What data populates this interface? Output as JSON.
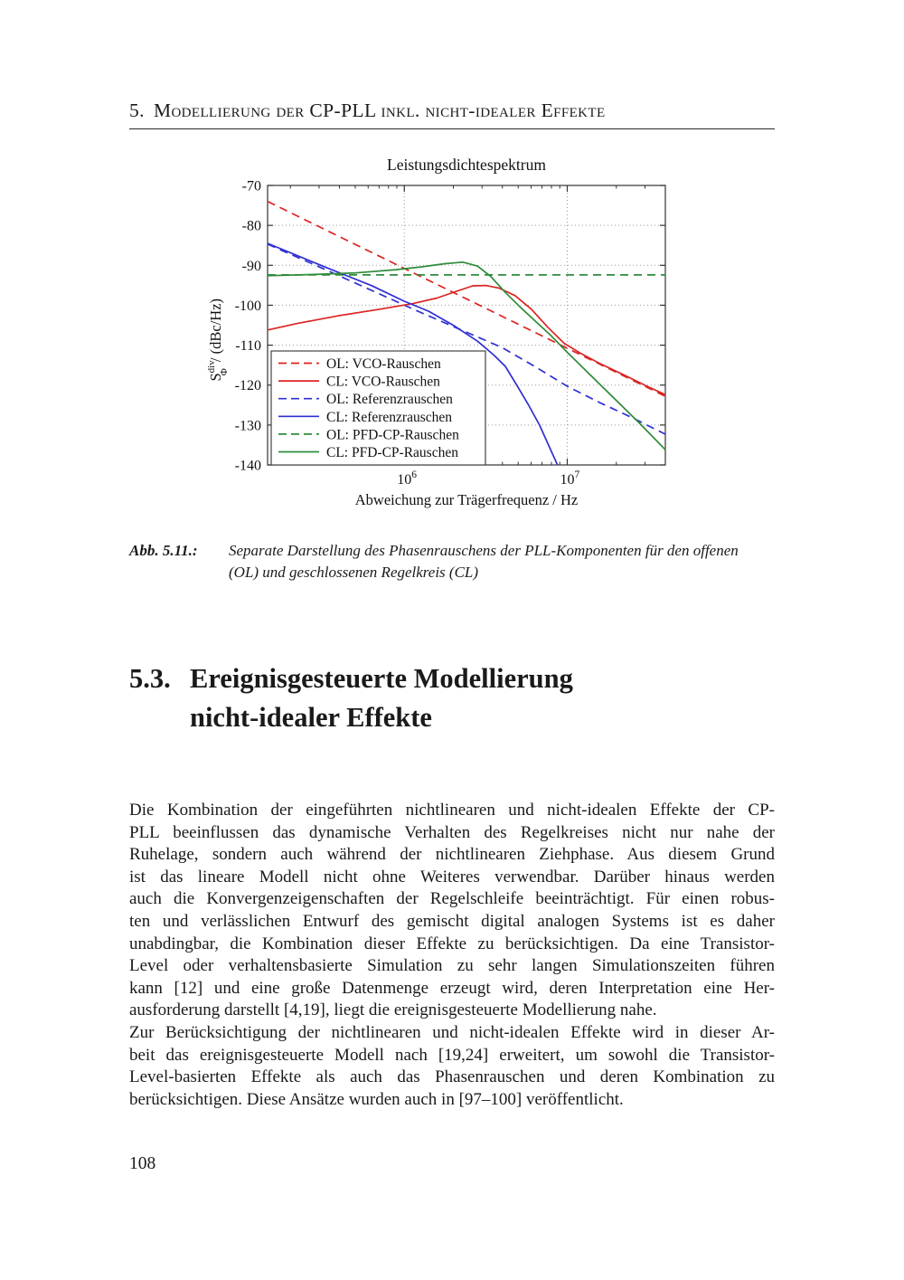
{
  "page": {
    "header_number": "5.",
    "header_text": "Modellierung der CP-PLL inkl. nicht-idealer Effekte",
    "page_number": "108"
  },
  "figure": {
    "caption_label": "Abb. 5.11.:",
    "caption_lines": [
      "Separate Darstellung des Phasenrauschens der PLL-Komponenten für den offenen",
      "(OL) und geschlossenen Regelkreis (CL)"
    ]
  },
  "section": {
    "number": "5.3.",
    "title_lines": [
      "Ereignisgesteuerte Modellierung",
      "nicht-idealer Effekte"
    ]
  },
  "body": {
    "paragraphs": [
      [
        "Die Kombination der eingeführten nichtlinearen und nicht-idealen Effekte der CP-",
        "PLL beeinflussen das dynamische Verhalten des Regelkreises nicht nur nahe der",
        "Ruhelage, sondern auch während der nichtlinearen Ziehphase. Aus diesem Grund",
        "ist das lineare Modell nicht ohne Weiteres verwendbar. Darüber hinaus werden",
        "auch die Konvergenzeigenschaften der Regelschleife beeinträchtigt. Für einen robus-",
        "ten und verlässlichen Entwurf des gemischt digital analogen Systems ist es daher",
        "unabdingbar, die Kombination dieser Effekte zu berücksichtigen. Da eine Transistor-",
        "Level oder verhaltensbasierte Simulation zu sehr langen Simulationszeiten führen",
        "kann [12] und eine große Datenmenge erzeugt wird, deren Interpretation eine Her-",
        "ausforderung darstellt [4,19], liegt die ereignisgesteuerte Modellierung nahe."
      ],
      [
        "Zur Berücksichtigung der nichtlinearen und nicht-idealen Effekte wird in dieser Ar-",
        "beit das ereignisgesteuerte Modell nach [19,24] erweitert, um sowohl die Transistor-",
        "Level-basierten Effekte als auch das Phasenrauschen und deren Kombination zu",
        "berücksichtigen. Diese Ansätze wurden auch in [97–100] veröffentlicht."
      ]
    ]
  },
  "chart_data": {
    "type": "line",
    "title": "Leistungsdichtespektrum",
    "xlabel": "Abweichung zur Trägerfrequenz / Hz",
    "ylabel": "S_Phi^div / (dBc/Hz)",
    "ylabel_parts": {
      "base": "S",
      "sup": "div",
      "sub": "Φ",
      "rest": " / (dBc/Hz)"
    },
    "x_scale": "log",
    "x_range_log10": [
      5.161,
      7.602
    ],
    "x_major_ticks": [
      {
        "log10": 6,
        "base": "10",
        "exp": "6"
      },
      {
        "log10": 7,
        "base": "10",
        "exp": "7"
      }
    ],
    "y_range": [
      -140,
      -70
    ],
    "y_ticks": [
      -70,
      -80,
      -90,
      -100,
      -110,
      -120,
      -130,
      -140
    ],
    "grid": "dotted",
    "legend_position": "lower-left",
    "colors": {
      "red": "#dc2423",
      "blue": "#2f2fd3",
      "green": "#2e8b3a"
    },
    "series": [
      {
        "name": "OL: VCO-Rauschen",
        "color": "red",
        "dashed": true,
        "points": [
          [
            5.161,
            -74
          ],
          [
            7.602,
            -122.8
          ]
        ]
      },
      {
        "name": "CL: VCO-Rauschen",
        "color": "red",
        "dashed": false,
        "points": [
          [
            5.161,
            -106.2
          ],
          [
            5.35,
            -104.5
          ],
          [
            5.6,
            -102.6
          ],
          [
            5.85,
            -101.0
          ],
          [
            6.05,
            -99.6
          ],
          [
            6.2,
            -98.2
          ],
          [
            6.32,
            -96.5
          ],
          [
            6.42,
            -95.15
          ],
          [
            6.5,
            -95.05
          ],
          [
            6.58,
            -95.7
          ],
          [
            6.68,
            -97.6
          ],
          [
            6.78,
            -101.0
          ],
          [
            6.88,
            -105.5
          ],
          [
            6.98,
            -109.5
          ],
          [
            7.08,
            -112.0
          ],
          [
            7.2,
            -114.6
          ],
          [
            7.35,
            -117.5
          ],
          [
            7.5,
            -120.5
          ],
          [
            7.602,
            -122.4
          ]
        ]
      },
      {
        "name": "OL: Referenzrauschen",
        "color": "blue",
        "dashed": true,
        "points": [
          [
            5.161,
            -84.7
          ],
          [
            5.5,
            -90.8
          ],
          [
            5.85,
            -97.2
          ],
          [
            6.1,
            -101.8
          ],
          [
            6.35,
            -106.2
          ],
          [
            6.6,
            -110.6
          ],
          [
            6.8,
            -115.3
          ],
          [
            7.0,
            -120.3
          ],
          [
            7.2,
            -124.4
          ],
          [
            7.4,
            -128.2
          ],
          [
            7.602,
            -132.3
          ]
        ]
      },
      {
        "name": "CL: Referenzrauschen",
        "color": "blue",
        "dashed": false,
        "points": [
          [
            5.161,
            -84.5
          ],
          [
            5.5,
            -90.2
          ],
          [
            5.8,
            -95.1
          ],
          [
            6.0,
            -99.0
          ],
          [
            6.15,
            -101.5
          ],
          [
            6.3,
            -105.0
          ],
          [
            6.45,
            -109.0
          ],
          [
            6.55,
            -112.5
          ],
          [
            6.62,
            -115.3
          ],
          [
            6.69,
            -120.0
          ],
          [
            6.76,
            -124.8
          ],
          [
            6.83,
            -130.0
          ],
          [
            6.94,
            -140.0
          ]
        ]
      },
      {
        "name": "OL: PFD-CP-Rauschen",
        "color": "green",
        "dashed": true,
        "points": [
          [
            5.161,
            -92.4
          ],
          [
            7.602,
            -92.4
          ]
        ]
      },
      {
        "name": "CL: PFD-CP-Rauschen",
        "color": "green",
        "dashed": false,
        "points": [
          [
            5.161,
            -92.6
          ],
          [
            5.45,
            -92.3
          ],
          [
            5.7,
            -91.9
          ],
          [
            5.95,
            -91.1
          ],
          [
            6.1,
            -90.4
          ],
          [
            6.25,
            -89.6
          ],
          [
            6.36,
            -89.2
          ],
          [
            6.45,
            -90.2
          ],
          [
            6.53,
            -92.8
          ],
          [
            6.62,
            -96.8
          ],
          [
            6.71,
            -100.4
          ],
          [
            6.8,
            -103.8
          ],
          [
            6.9,
            -107.6
          ],
          [
            7.0,
            -111.8
          ],
          [
            7.15,
            -117.8
          ],
          [
            7.3,
            -123.8
          ],
          [
            7.45,
            -129.8
          ],
          [
            7.602,
            -136.2
          ]
        ]
      }
    ]
  }
}
